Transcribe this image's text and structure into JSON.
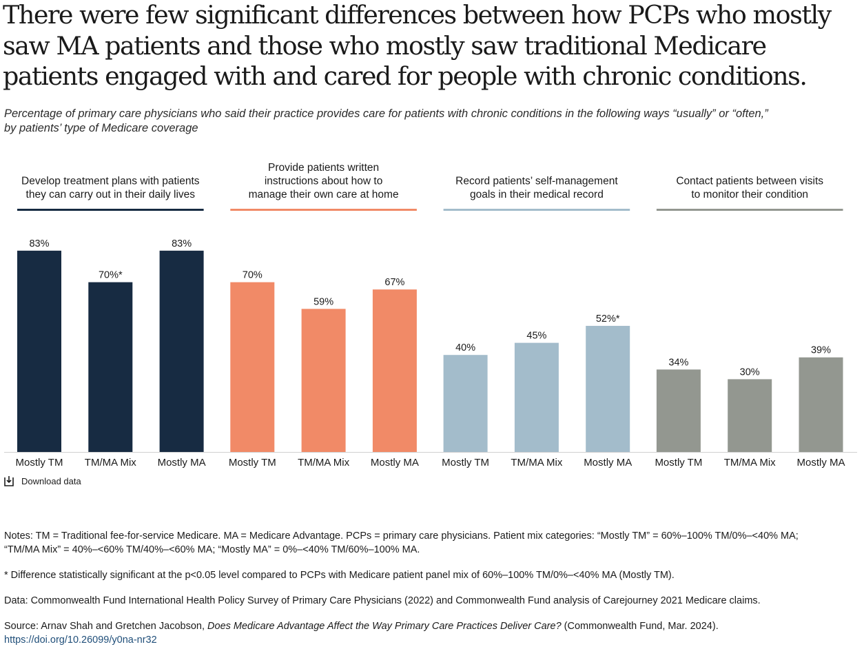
{
  "title": "There were few significant differences between how PCPs who mostly saw MA patients and those who mostly saw traditional Medicare patients engaged with and cared for people with chronic conditions.",
  "subtitle_line1": "Percentage of primary care physicians who said their practice provides care for patients with chronic conditions in the following ways “usually” or “often,”",
  "subtitle_line2": "by patients’ type of Medicare coverage",
  "download_label": "Download data",
  "notes": {
    "line1": "Notes: TM = Traditional fee-for-service Medicare. MA = Medicare Advantage. PCPs = primary care physicians. Patient mix categories: “Mostly TM” = 60%–100% TM/0%–<40% MA;",
    "line2": "“TM/MA Mix” = 40%–<60% TM/40%–<60% MA; “Mostly MA” = 0%–<40% TM/60%–100% MA.",
    "significance": "* Difference statistically significant at the p<0.05 level compared to PCPs with Medicare patient panel mix of 60%–100% TM/0%–<40% MA (Mostly TM).",
    "data": "Data: Commonwealth Fund International Health Policy Survey of Primary Care Physicians (2022) and Commonwealth Fund analysis of Carejourney 2021 Medicare claims.",
    "source_prefix": "Source: Arnav Shah and Gretchen Jacobson, ",
    "source_title": "Does Medicare Advantage Affect the Way Primary Care Practices Deliver Care?",
    "source_suffix": " (Commonwealth Fund, Mar. 2024).",
    "doi": "https://doi.org/10.26099/y0na-nr32"
  },
  "chart_data": {
    "type": "bar",
    "ylim": [
      0,
      100
    ],
    "grid": false,
    "categories": [
      "Mostly TM",
      "TM/MA Mix",
      "Mostly MA"
    ],
    "groups": [
      {
        "title_lines": [
          "Develop treatment plans with patients",
          "they can carry out in their daily lives"
        ],
        "color": "#172b42",
        "values": [
          83,
          70,
          83
        ],
        "labels": [
          "83%",
          "70%*",
          "83%"
        ]
      },
      {
        "title_lines": [
          "Provide patients written",
          "instructions about how to",
          "manage their own care at home"
        ],
        "color": "#f18a67",
        "values": [
          70,
          59,
          67
        ],
        "labels": [
          "70%",
          "59%",
          "67%"
        ]
      },
      {
        "title_lines": [
          "Record patients’ self-management",
          "goals in their medical record"
        ],
        "color": "#a3bccb",
        "values": [
          40,
          45,
          52
        ],
        "labels": [
          "40%",
          "45%",
          "52%*"
        ]
      },
      {
        "title_lines": [
          "Contact patients between visits",
          "to monitor their condition"
        ],
        "color": "#939790",
        "values": [
          34,
          30,
          39
        ],
        "labels": [
          "34%",
          "30%",
          "39%"
        ]
      }
    ]
  }
}
